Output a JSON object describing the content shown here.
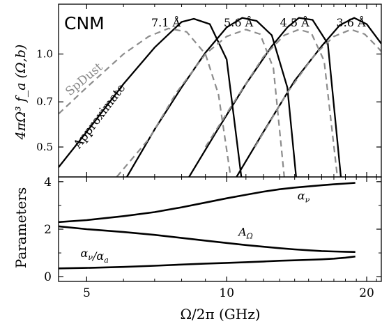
{
  "chart_data": [
    {
      "type": "line",
      "panel": "top",
      "panel_label": "CNM",
      "ylabel": "4πΩ³ f_a (Ω,b)",
      "xlabel": "",
      "x_scale": "log",
      "y_scale": "log",
      "xlim": [
        4.35,
        21.5
      ],
      "ylim": [
        0.4,
        1.45
      ],
      "yticks": [
        0.5,
        0.7,
        1.0
      ],
      "ytick_labels": [
        "0.5",
        "0.7",
        "1.0"
      ],
      "grid": false,
      "curve_labels": [
        {
          "text": "7.1 Å",
          "x": 7.4
        },
        {
          "text": "5.6 Å",
          "x": 10.6
        },
        {
          "text": "4.5 Å",
          "x": 14.0
        },
        {
          "text": "3.6 Å",
          "x": 18.5
        }
      ],
      "annotations": [
        "SpDust",
        "Approximate"
      ],
      "series": [
        {
          "style": "solid",
          "label": "7.1 Å",
          "x": [
            4.35,
            5.0,
            6.0,
            7.0,
            8.0,
            8.5,
            9.2,
            10.0,
            10.75
          ],
          "y": [
            0.43,
            0.56,
            0.8,
            1.05,
            1.27,
            1.3,
            1.25,
            0.96,
            0.4
          ]
        },
        {
          "style": "solid",
          "label": "5.6 Å",
          "x": [
            6.1,
            7.0,
            8.0,
            9.0,
            10.0,
            10.8,
            11.6,
            12.5,
            13.5,
            14.1
          ],
          "y": [
            0.4,
            0.57,
            0.78,
            1.01,
            1.22,
            1.31,
            1.28,
            1.15,
            0.78,
            0.4
          ]
        },
        {
          "style": "solid",
          "label": "4.5 Å",
          "x": [
            8.3,
            9.5,
            11.0,
            12.5,
            13.5,
            14.3,
            15.3,
            16.5,
            17.6
          ],
          "y": [
            0.4,
            0.56,
            0.8,
            1.06,
            1.22,
            1.31,
            1.29,
            1.08,
            0.4
          ]
        },
        {
          "style": "solid",
          "label": "3.6 Å",
          "x": [
            10.5,
            12.0,
            14.0,
            16.0,
            17.5,
            18.8,
            20.0,
            21.5
          ],
          "y": [
            0.4,
            0.56,
            0.82,
            1.06,
            1.24,
            1.31,
            1.25,
            1.08
          ]
        },
        {
          "style": "dashed",
          "label": "SpDust 7.1 Å",
          "x": [
            4.35,
            5.0,
            6.0,
            6.8,
            7.5,
            8.2,
            9.0,
            9.6,
            10.2
          ],
          "y": [
            0.64,
            0.78,
            1.0,
            1.14,
            1.21,
            1.18,
            1.0,
            0.74,
            0.4
          ]
        },
        {
          "style": "dashed",
          "label": "SpDust 5.6 Å",
          "x": [
            5.8,
            6.8,
            7.8,
            9.0,
            10.0,
            11.0,
            11.8,
            12.6,
            13.3
          ],
          "y": [
            0.4,
            0.53,
            0.75,
            1.0,
            1.14,
            1.2,
            1.16,
            0.9,
            0.4
          ]
        },
        {
          "style": "dashed",
          "label": "SpDust 4.5 Å",
          "x": [
            9.0,
            10.5,
            12.0,
            13.3,
            14.3,
            15.2,
            16.2,
            17.3
          ],
          "y": [
            0.5,
            0.72,
            0.98,
            1.15,
            1.2,
            1.17,
            0.95,
            0.4
          ]
        },
        {
          "style": "dashed",
          "label": "SpDust 3.6 Å",
          "x": [
            11.5,
            13.5,
            15.5,
            17.0,
            18.5,
            19.8,
            21.0,
            21.5
          ],
          "y": [
            0.5,
            0.75,
            1.0,
            1.14,
            1.2,
            1.16,
            1.06,
            1.02
          ]
        }
      ]
    },
    {
      "type": "line",
      "panel": "bottom",
      "ylabel": "Parameters",
      "xlabel": "Ω/2π (GHz)",
      "x_scale": "log",
      "xlim": [
        4.35,
        21.5
      ],
      "ylim": [
        -0.2,
        4.2
      ],
      "xticks": [
        5,
        10,
        20
      ],
      "xtick_labels": [
        "5",
        "10",
        "20"
      ],
      "yticks": [
        0,
        2,
        4
      ],
      "ytick_labels": [
        "0",
        "2",
        "4"
      ],
      "grid": false,
      "curve_labels": [
        "α_ν",
        "A_Ω",
        "α_ν/α_a"
      ],
      "series": [
        {
          "label": "α_ν",
          "x": [
            4.35,
            5.0,
            6.0,
            7.0,
            8.0,
            9.0,
            10.0,
            11.0,
            12.0,
            13.0,
            14.0,
            15.0,
            16.0,
            17.0,
            18.0,
            18.9
          ],
          "y": [
            2.3,
            2.38,
            2.55,
            2.72,
            2.92,
            3.12,
            3.3,
            3.45,
            3.58,
            3.68,
            3.75,
            3.8,
            3.85,
            3.89,
            3.92,
            3.95
          ]
        },
        {
          "label": "A_Ω",
          "x": [
            4.35,
            5.0,
            6.0,
            7.0,
            8.0,
            9.0,
            10.0,
            11.0,
            12.0,
            13.0,
            14.0,
            15.0,
            16.0,
            17.0,
            18.0,
            18.9
          ],
          "y": [
            2.12,
            2.0,
            1.88,
            1.76,
            1.63,
            1.52,
            1.42,
            1.33,
            1.26,
            1.2,
            1.15,
            1.11,
            1.08,
            1.06,
            1.05,
            1.04
          ]
        },
        {
          "label": "α_ν/α_a",
          "x": [
            4.35,
            5.0,
            6.0,
            7.0,
            8.0,
            9.0,
            10.0,
            11.0,
            12.0,
            13.0,
            14.0,
            15.0,
            16.0,
            17.0,
            18.0,
            18.9
          ],
          "y": [
            0.35,
            0.37,
            0.41,
            0.46,
            0.51,
            0.55,
            0.58,
            0.61,
            0.64,
            0.67,
            0.69,
            0.71,
            0.73,
            0.76,
            0.8,
            0.85
          ]
        }
      ]
    }
  ]
}
